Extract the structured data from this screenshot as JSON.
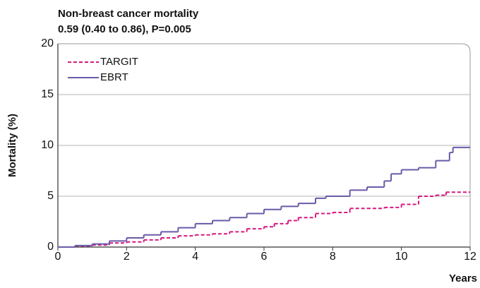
{
  "chart_data": {
    "type": "step",
    "title": "Non-breast cancer mortality",
    "subtitle": "0.59 (0.40 to 0.86), P=0.005",
    "xlabel": "Years",
    "ylabel": "Mortality (%)",
    "xlim": [
      0,
      12
    ],
    "ylim": [
      0,
      20
    ],
    "xticks": [
      0,
      2,
      4,
      6,
      8,
      10,
      12
    ],
    "yticks": [
      0,
      5,
      10,
      15,
      20
    ],
    "grid": true,
    "legend": "upper left",
    "series": [
      {
        "name": "TARGIT",
        "color": "#d6197e",
        "line_style": "dashed",
        "x": [
          0,
          0.5,
          1,
          1.5,
          2,
          2.5,
          3,
          3.5,
          4,
          4.5,
          5,
          5.5,
          6,
          6.3,
          6.7,
          7,
          7.5,
          8,
          8.5,
          9,
          9.5,
          10,
          10.5,
          11,
          11.3,
          12
        ],
        "values": [
          0,
          0.1,
          0.2,
          0.4,
          0.5,
          0.7,
          0.9,
          1.1,
          1.2,
          1.3,
          1.5,
          1.8,
          2.0,
          2.3,
          2.6,
          2.9,
          3.3,
          3.4,
          3.8,
          3.8,
          3.9,
          4.2,
          5.0,
          5.1,
          5.4,
          5.4
        ]
      },
      {
        "name": "EBRT",
        "color": "#6a5aa8",
        "line_style": "solid",
        "x": [
          0,
          0.5,
          1,
          1.5,
          2,
          2.5,
          3,
          3.5,
          4,
          4.5,
          5,
          5.5,
          6,
          6.5,
          7,
          7.5,
          7.8,
          8.5,
          9,
          9.5,
          9.7,
          10,
          10.5,
          11,
          11.4,
          11.5,
          12
        ],
        "values": [
          0,
          0.15,
          0.3,
          0.6,
          0.9,
          1.2,
          1.5,
          1.9,
          2.3,
          2.6,
          2.9,
          3.3,
          3.7,
          4.0,
          4.3,
          4.8,
          5.0,
          5.6,
          5.9,
          6.5,
          7.2,
          7.6,
          7.8,
          8.5,
          9.3,
          9.8,
          9.8
        ]
      }
    ]
  }
}
